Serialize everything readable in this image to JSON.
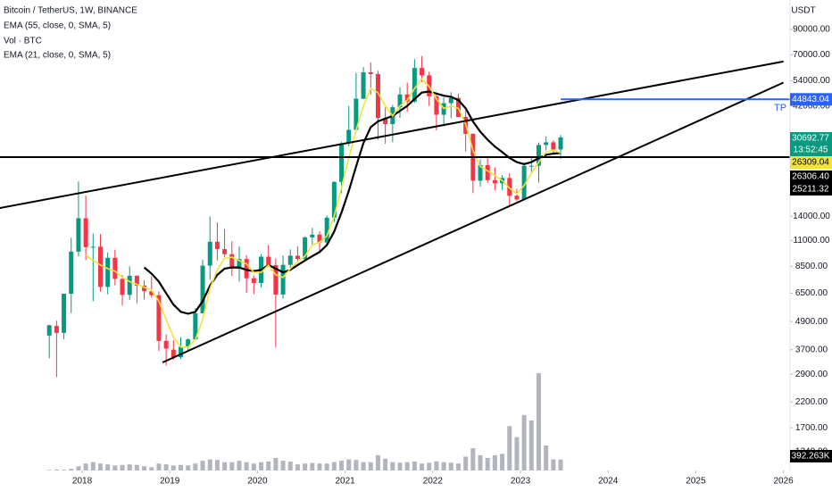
{
  "chart_data": {
    "type": "candlestick",
    "title": "Bitcoin / TetherUS, 1W, BINANCE",
    "axis_unit": "USDT",
    "log_scale": true,
    "countdown": "13:52:45",
    "up_color": "#089981",
    "down_color": "#f23645",
    "x": [
      "2017-08",
      "2017-09",
      "2017-10",
      "2017-11",
      "2017-12",
      "2018-01",
      "2018-02",
      "2018-03",
      "2018-04",
      "2018-05",
      "2018-06",
      "2018-07",
      "2018-08",
      "2018-09",
      "2018-10",
      "2018-11",
      "2018-12",
      "2019-01",
      "2019-02",
      "2019-03",
      "2019-04",
      "2019-05",
      "2019-06",
      "2019-07",
      "2019-08",
      "2019-09",
      "2019-10",
      "2019-11",
      "2019-12",
      "2020-01",
      "2020-02",
      "2020-03",
      "2020-04",
      "2020-05",
      "2020-06",
      "2020-07",
      "2020-08",
      "2020-09",
      "2020-10",
      "2020-11",
      "2020-12",
      "2021-01",
      "2021-02",
      "2021-03",
      "2021-04",
      "2021-05",
      "2021-06",
      "2021-07",
      "2021-08",
      "2021-09",
      "2021-10",
      "2021-11",
      "2021-12",
      "2022-01",
      "2022-02",
      "2022-03",
      "2022-04",
      "2022-05",
      "2022-06",
      "2022-07",
      "2022-08",
      "2022-09",
      "2022-10",
      "2022-11",
      "2022-12",
      "2023-01",
      "2023-02",
      "2023-03",
      "2023-04",
      "2023-05",
      "2023-06"
    ],
    "open": [
      4261,
      4689,
      4378,
      6463,
      9838,
      13716,
      10285,
      10326,
      6922,
      9246,
      7494,
      6391,
      7735,
      7011,
      6626,
      6369,
      4041,
      3701,
      3434,
      3814,
      4102,
      5320,
      8555,
      10854,
      10085,
      9588,
      8290,
      9140,
      7540,
      7195,
      9351,
      8599,
      6412,
      8620,
      9448,
      9138,
      11335,
      11649,
      10777,
      13791,
      19695,
      28923,
      33092,
      45134,
      58739,
      57697,
      37254,
      35044,
      41461,
      47100,
      43820,
      61300,
      56950,
      46216,
      38466,
      43160,
      45510,
      37630,
      31801,
      19942,
      23297,
      20048,
      19422,
      20490,
      17165,
      16541,
      23125,
      23141,
      28465,
      29233,
      27210
    ],
    "high": [
      4745,
      4939,
      6470,
      11300,
      19798,
      17176,
      11786,
      11710,
      9759,
      10020,
      7786,
      8507,
      7750,
      7410,
      7680,
      6615,
      4312,
      4069,
      4198,
      4140,
      5600,
      9074,
      13970,
      13147,
      12325,
      10905,
      10370,
      9505,
      7750,
      9578,
      10500,
      9188,
      9460,
      10067,
      10380,
      11444,
      12468,
      12050,
      14100,
      19863,
      29300,
      41950,
      58352,
      61844,
      64854,
      59592,
      41330,
      42448,
      50500,
      52920,
      67000,
      69000,
      59053,
      48000,
      45821,
      48190,
      47444,
      40023,
      31982,
      24668,
      25211,
      22799,
      21085,
      21480,
      18387,
      23960,
      25250,
      29184,
      31000,
      29820,
      31431
    ],
    "low": [
      3400,
      2817,
      4110,
      5325,
      9380,
      9035,
      6000,
      6600,
      6430,
      7032,
      5755,
      6070,
      5880,
      6100,
      6200,
      3652,
      3156,
      3349,
      3373,
      3690,
      4067,
      5320,
      7440,
      9010,
      9320,
      7710,
      7300,
      6515,
      6435,
      6871,
      8445,
      3782,
      6150,
      8117,
      8833,
      8893,
      10518,
      9825,
      10416,
      13195,
      17572,
      28130,
      32296,
      44950,
      47044,
      30000,
      28805,
      29278,
      37332,
      39600,
      43283,
      53256,
      42000,
      32917,
      34322,
      37155,
      37578,
      26700,
      17622,
      18781,
      19520,
      18125,
      18190,
      15476,
      16256,
      16499,
      21351,
      19549,
      26942,
      25811,
      24800
    ],
    "close": [
      4724,
      4378,
      6463,
      9838,
      13716,
      10285,
      10326,
      6923,
      9246,
      7494,
      6391,
      7730,
      7011,
      6626,
      6371,
      4041,
      3742,
      3434,
      3813,
      4103,
      5320,
      8555,
      10854,
      10085,
      9588,
      8289,
      9140,
      7540,
      7195,
      9352,
      8600,
      6410,
      8620,
      9448,
      9138,
      11335,
      11649,
      10777,
      13791,
      19695,
      28923,
      33092,
      45135,
      58740,
      57694,
      37253,
      35045,
      41461,
      47100,
      43824,
      61299,
      56950,
      46216,
      38466,
      43160,
      45510,
      37630,
      31801,
      19942,
      23293,
      20050,
      19423,
      20490,
      17164,
      16542,
      23125,
      23141,
      28465,
      29233,
      27210,
      30692.77
    ],
    "series": [
      {
        "name": "EMA (55, close, 0, SMA, 5)",
        "color": "#000000",
        "values": [
          null,
          null,
          null,
          null,
          null,
          null,
          null,
          null,
          null,
          null,
          null,
          null,
          null,
          8400,
          7900,
          7300,
          6500,
          5800,
          5400,
          5300,
          5400,
          6000,
          7000,
          7800,
          8300,
          8400,
          8400,
          8200,
          8100,
          8200,
          8600,
          8300,
          8000,
          8200,
          8600,
          9000,
          9400,
          9800,
          10500,
          12000,
          14500,
          18000,
          23000,
          29000,
          34000,
          36000,
          37000,
          38000,
          40000,
          42000,
          45000,
          48000,
          48500,
          47500,
          46500,
          46000,
          44500,
          41000,
          36000,
          32500,
          30000,
          28000,
          26500,
          25000,
          24000,
          23500,
          24000,
          25000,
          25800,
          26100,
          26306.4
        ],
        "value_labels": [
          null,
          null,
          null,
          null,
          null,
          null,
          null,
          null,
          null,
          null,
          null,
          null,
          null,
          null,
          null,
          null,
          null,
          null,
          null,
          null,
          null,
          null,
          null,
          null,
          null,
          null,
          null,
          null,
          null,
          null,
          null,
          null,
          null,
          null,
          null,
          null,
          null,
          null,
          null,
          null,
          null,
          null,
          null,
          null,
          null,
          null,
          null,
          null,
          null,
          null,
          null,
          null,
          null,
          null,
          null,
          null,
          null,
          null,
          null,
          null,
          null,
          null,
          null,
          null,
          null,
          null,
          null,
          null,
          null,
          null,
          "26306.40"
        ]
      },
      {
        "name": "EMA (21, close, 0, SMA, 5)",
        "color": "#f2e33c",
        "values": [
          null,
          null,
          null,
          null,
          null,
          9500,
          9000,
          8600,
          8300,
          8100,
          7600,
          7300,
          7100,
          6900,
          6700,
          6000,
          5000,
          4200,
          3800,
          3800,
          4100,
          5000,
          6800,
          8200,
          9200,
          9300,
          9000,
          8700,
          8000,
          8000,
          8600,
          7800,
          7600,
          8300,
          8900,
          9400,
          10500,
          10800,
          11500,
          14000,
          18500,
          25000,
          33000,
          42000,
          50000,
          48000,
          42000,
          38000,
          42000,
          44500,
          50000,
          55000,
          51000,
          45000,
          41000,
          42000,
          41000,
          35000,
          27000,
          23000,
          22000,
          21000,
          20000,
          18500,
          17500,
          19000,
          21500,
          24000,
          26500,
          27000,
          26309.04
        ]
      }
    ],
    "volume": {
      "name": "Vol · BTC",
      "color": "#b2b5be",
      "vlim": [
        0,
        4500000
      ],
      "values": [
        20000,
        30000,
        30000,
        60000,
        150000,
        250000,
        300000,
        250000,
        220000,
        180000,
        200000,
        220000,
        200000,
        150000,
        120000,
        250000,
        220000,
        180000,
        200000,
        180000,
        250000,
        350000,
        400000,
        380000,
        300000,
        300000,
        350000,
        300000,
        250000,
        300000,
        320000,
        450000,
        350000,
        320000,
        220000,
        250000,
        270000,
        250000,
        250000,
        300000,
        350000,
        400000,
        380000,
        300000,
        300000,
        550000,
        420000,
        300000,
        280000,
        300000,
        320000,
        250000,
        280000,
        330000,
        300000,
        280000,
        250000,
        500000,
        800000,
        550000,
        450000,
        550000,
        600000,
        1600000,
        1200000,
        2000000,
        1800000,
        3500000,
        900000,
        400000,
        392263
      ],
      "value_labels": [
        null,
        null,
        null,
        null,
        null,
        null,
        null,
        null,
        null,
        null,
        null,
        null,
        null,
        null,
        null,
        null,
        null,
        null,
        null,
        null,
        null,
        null,
        null,
        null,
        null,
        null,
        null,
        null,
        null,
        null,
        null,
        null,
        null,
        null,
        null,
        null,
        null,
        null,
        null,
        null,
        null,
        null,
        null,
        null,
        null,
        null,
        null,
        null,
        null,
        null,
        null,
        null,
        null,
        null,
        null,
        null,
        null,
        null,
        null,
        null,
        null,
        null,
        null,
        null,
        null,
        null,
        null,
        null,
        null,
        null,
        "392.263K"
      ]
    },
    "lines": [
      {
        "color": "#000000",
        "x": [
          2017.0,
          2026.0
        ],
        "y": [
          15040,
          65400
        ]
      },
      {
        "color": "#000000",
        "x": [
          2018.917,
          2026.0
        ],
        "y": [
          3260,
          53000
        ]
      }
    ],
    "hlines": [
      {
        "value": 44843.04,
        "label": "TP",
        "color": "#2962ff",
        "x0": 2023.46
      },
      {
        "value": 25211.32,
        "color": "#000000"
      }
    ],
    "xlim": [
      2017.063,
      2026.075
    ],
    "xticks": [
      2018,
      2019,
      2020,
      2021,
      2022,
      2023,
      2024,
      2025,
      2026
    ],
    "ylim": [
      1111,
      120700
    ],
    "yticks": [
      {
        "value": 90000,
        "label": "90000.00"
      },
      {
        "value": 70000,
        "label": "70000.00"
      },
      {
        "value": 54000,
        "label": "54000.00"
      },
      {
        "value": 42000,
        "label": "42000.00"
      },
      {
        "value": 14000,
        "label": "14000.00"
      },
      {
        "value": 11000,
        "label": "11000.00"
      },
      {
        "value": 8500,
        "label": "8500.00"
      },
      {
        "value": 6500,
        "label": "6500.00"
      },
      {
        "value": 4900,
        "label": "4900.00"
      },
      {
        "value": 3700,
        "label": "3700.00"
      },
      {
        "value": 2900,
        "label": "2900.00"
      },
      {
        "value": 2200,
        "label": "2200.00"
      },
      {
        "value": 1700,
        "label": "1700.00"
      },
      {
        "value": 1340,
        "label": "1340.00"
      }
    ]
  }
}
